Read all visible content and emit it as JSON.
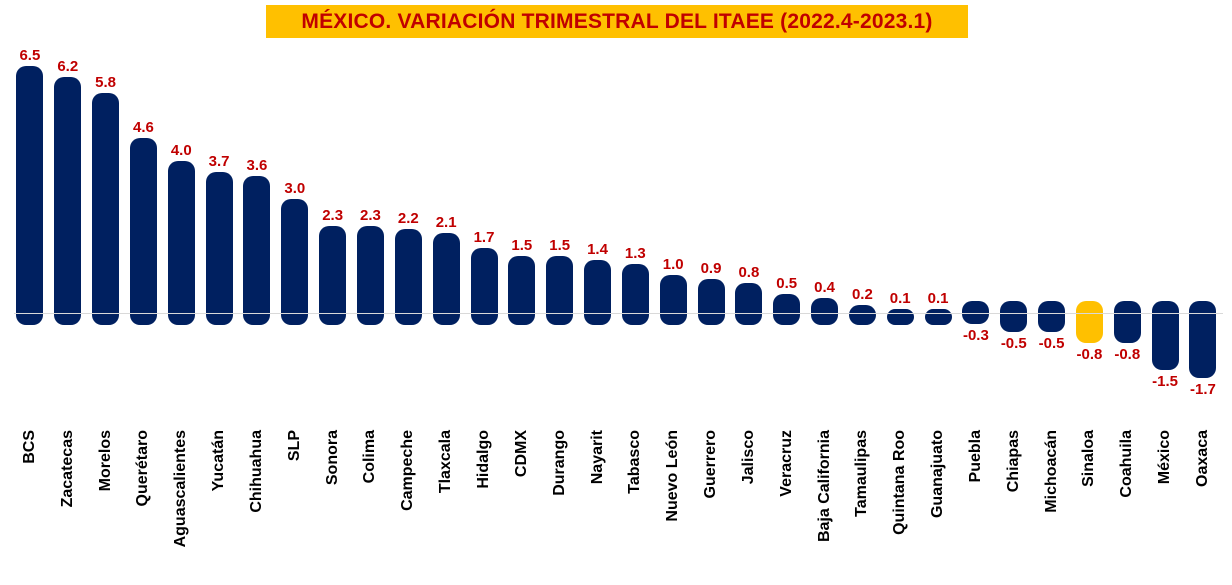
{
  "chart_data": {
    "type": "bar",
    "title": "MÉXICO. VARIACIÓN TRIMESTRAL DEL ITAEE (2022.4-2023.1)",
    "categories": [
      "BCS",
      "Zacatecas",
      "Morelos",
      "Querétaro",
      "Aguascalientes",
      "Yucatán",
      "Chihuahua",
      "SLP",
      "Sonora",
      "Colima",
      "Campeche",
      "Tlaxcala",
      "Hidalgo",
      "CDMX",
      "Durango",
      "Nayarit",
      "Tabasco",
      "Nuevo León",
      "Guerrero",
      "Jalisco",
      "Veracruz",
      "Baja California",
      "Tamaulipas",
      "Quintana Roo",
      "Guanajuato",
      "Puebla",
      "Chiapas",
      "Michoacán",
      "Sinaloa",
      "Coahuila",
      "México",
      "Oaxaca"
    ],
    "values": [
      6.5,
      6.2,
      5.8,
      4.6,
      4.0,
      3.7,
      3.6,
      3.0,
      2.3,
      2.3,
      2.2,
      2.1,
      1.7,
      1.5,
      1.5,
      1.4,
      1.3,
      1.0,
      0.9,
      0.8,
      0.5,
      0.4,
      0.2,
      0.1,
      0.1,
      -0.3,
      -0.5,
      -0.5,
      -0.8,
      -0.8,
      -1.5,
      -1.7
    ],
    "value_labels": [
      "6.5",
      "6.2",
      "5.8",
      "4.6",
      "4.0",
      "3.7",
      "3.6",
      "3.0",
      "2.3",
      "2.3",
      "2.2",
      "2.1",
      "1.7",
      "1.5",
      "1.5",
      "1.4",
      "1.3",
      "1.0",
      "0.9",
      "0.8",
      "0.5",
      "0.4",
      "0.2",
      "0.1",
      "0.1",
      "-0.3",
      "-0.5",
      "-0.5",
      "-0.8",
      "-0.8",
      "-1.5",
      "-1.7"
    ],
    "highlight_category": "Sinaloa",
    "xlabel": "",
    "ylabel": "",
    "ylim": [
      -2,
      7
    ],
    "baseline": 0,
    "grid": "zero-line-only",
    "legend": "none",
    "colors": {
      "bar": "#002060",
      "highlight_bar": "#FFC000",
      "value_label": "#C00000",
      "title_text": "#C00000",
      "title_background": "#FFC000",
      "zero_line": "#D9D9D9",
      "category_label": "#000000",
      "background": "#FFFFFF"
    }
  }
}
